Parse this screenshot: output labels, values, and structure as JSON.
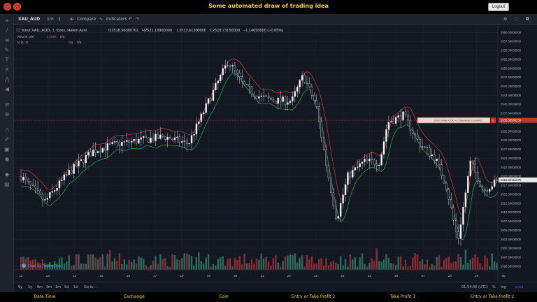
{
  "header": {
    "title": "Some automated draw of trading idea",
    "logout_label": "Logout"
  },
  "toolbar": {
    "symbol": "XAU_AUD",
    "interval": "1m",
    "compare_label": "Compare",
    "indicators_label": "Indicators"
  },
  "legend": {
    "series_title": "forex:XAU_AUD, 1, forex, Heikin Ashi",
    "open": "O2518.96389761",
    "high": "H2521.13900000",
    "low": "L2513.61300000",
    "close": "C2518.73150000",
    "change": "−1.14650000 (−0.05%)",
    "volume_label": "Volume (20)",
    "volume_value": "1.376K",
    "volume_extra": "n/a",
    "ai_label": "AI (1, 1)",
    "ai_value": "n/a",
    "ai_value2": "n/a"
  },
  "annotation": {
    "label": "Short draw, COC or sideways incoming",
    "close_glyph": "x",
    "price_tag": "2535.55583250"
  },
  "chart_data": {
    "type": "candlestick",
    "price_axis_labels": [
      "2560.00000000",
      "2557.50000000",
      "2555.00000000",
      "2552.50000000",
      "2550.00000000",
      "2547.50000000",
      "2545.00000000",
      "2542.50000000",
      "2540.00000000",
      "2537.50000000",
      "2535.00000000",
      "2532.50000000",
      "2530.00000000",
      "2527.50000000",
      "2525.00000000",
      "2522.50000000",
      "2520.00000000",
      "2517.50000000",
      "2515.00000000",
      "2512.50000000",
      "2510.00000000",
      "2507.50000000",
      "2505.00000000",
      "2502.50000000",
      "2500.00000000",
      "2497.50000000",
      "2495.00000000"
    ],
    "ylim": [
      2494,
      2562
    ],
    "last_price_tag": "2518.99151675",
    "x_tick_labels": [
      "12",
      "13",
      "14",
      "15",
      "16",
      "17",
      "18",
      "19",
      "20",
      "21",
      "22",
      "23",
      "24",
      "25",
      "26",
      "27",
      "28",
      "29",
      "30"
    ],
    "price_path": [
      [
        0,
        2520
      ],
      [
        1.5,
        2513
      ],
      [
        3,
        2521
      ],
      [
        4.5,
        2527
      ],
      [
        6,
        2529
      ],
      [
        7.5,
        2530
      ],
      [
        9,
        2531
      ],
      [
        10.5,
        2529
      ],
      [
        12,
        2543
      ],
      [
        13,
        2552
      ],
      [
        14,
        2545
      ],
      [
        15,
        2542
      ],
      [
        16,
        2541
      ],
      [
        17,
        2541
      ],
      [
        17.7,
        2548
      ],
      [
        18.5,
        2540
      ],
      [
        19.2,
        2522
      ],
      [
        19.8,
        2508
      ],
      [
        20.5,
        2520
      ],
      [
        21.5,
        2524
      ],
      [
        22.5,
        2524
      ],
      [
        23,
        2535
      ],
      [
        24,
        2537
      ],
      [
        25,
        2529
      ],
      [
        26,
        2525
      ],
      [
        26.7,
        2517
      ],
      [
        27.4,
        2502
      ],
      [
        28.2,
        2524
      ],
      [
        29,
        2516
      ],
      [
        30,
        2519
      ]
    ],
    "annotation_level": 2535.56
  },
  "bottombar": {
    "ranges": [
      "5y",
      "1y",
      "6m",
      "3m",
      "1m",
      "5d",
      "1d"
    ],
    "goto_label": "Go to...",
    "time_readout": "01:54:45 (UTC)",
    "percent_label": "%",
    "log_label": "log",
    "auto_label": "auto"
  },
  "footer": {
    "columns": [
      "Date Time",
      "Exchange",
      "Coin",
      "Entry or Take Profit 2",
      "Take Profit 1",
      "Entry or Take Profit 2"
    ]
  },
  "watermark": "Chart by TradingView",
  "colors": {
    "background": "#131722",
    "grid": "#1e2230",
    "up_volume": "#2a6b5a",
    "down_volume": "#8a2b32",
    "red_line": "#c0392b",
    "green_line": "#1aa53a",
    "title_yellow": "#f5d90a"
  }
}
